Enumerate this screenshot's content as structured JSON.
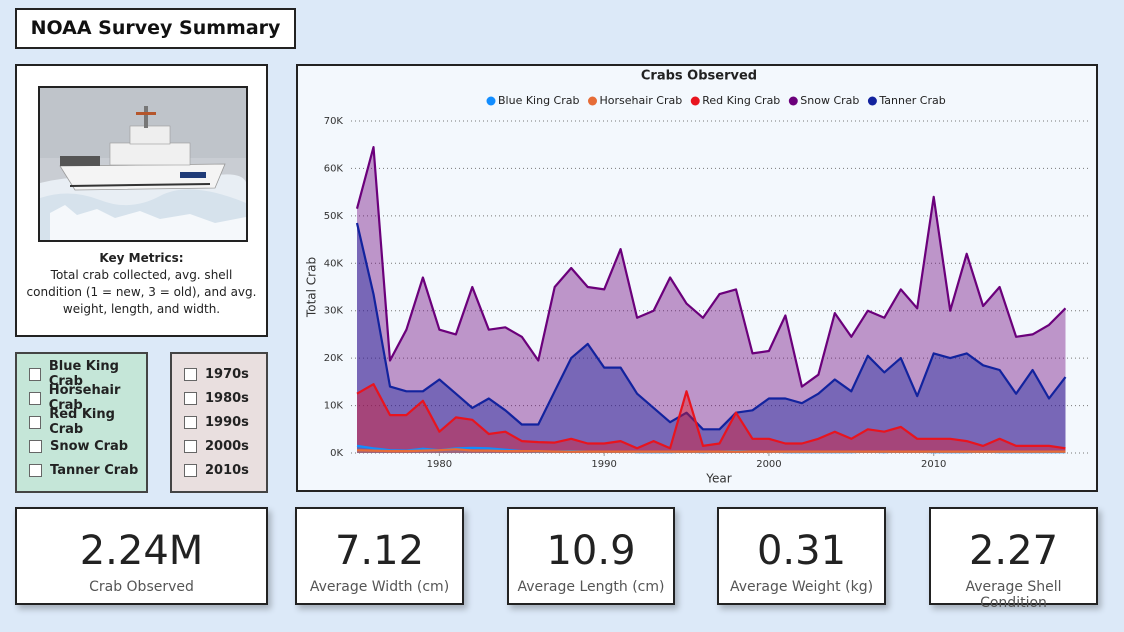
{
  "header": {
    "title": "NOAA Survey Summary"
  },
  "key_metrics": {
    "heading": "Key Metrics:",
    "text": "Total crab collected, avg. shell condition (1 = new, 3 = old), and avg. weight, length, and width."
  },
  "filters": {
    "species": [
      "Blue King Crab",
      "Horsehair Crab",
      "Red King Crab",
      "Snow Crab",
      "Tanner Crab"
    ],
    "decades": [
      "1970s",
      "1980s",
      "1990s",
      "2000s",
      "2010s"
    ]
  },
  "chart_data": {
    "type": "area",
    "title": "Crabs Observed",
    "x_label": "Year",
    "y_label": "Total Crab",
    "x": [
      1975,
      1976,
      1977,
      1978,
      1979,
      1980,
      1981,
      1982,
      1983,
      1984,
      1985,
      1986,
      1987,
      1988,
      1989,
      1990,
      1991,
      1992,
      1993,
      1994,
      1995,
      1996,
      1997,
      1998,
      1999,
      2000,
      2001,
      2002,
      2003,
      2004,
      2005,
      2006,
      2007,
      2008,
      2009,
      2010,
      2011,
      2012,
      2013,
      2014,
      2015,
      2016,
      2017,
      2018
    ],
    "xlim": [
      1975,
      2019
    ],
    "xticks": [
      1980,
      1990,
      2000,
      2010
    ],
    "ylim": [
      0,
      70000
    ],
    "yticks": [
      {
        "value": 0,
        "label": "0K"
      },
      {
        "value": 10000,
        "label": "10K"
      },
      {
        "value": 20000,
        "label": "20K"
      },
      {
        "value": 30000,
        "label": "30K"
      },
      {
        "value": 40000,
        "label": "40K"
      },
      {
        "value": 50000,
        "label": "50K"
      },
      {
        "value": 60000,
        "label": "60K"
      },
      {
        "value": 70000,
        "label": "70K"
      }
    ],
    "grid": true,
    "legend": "top",
    "series": [
      {
        "name": "Blue King Crab",
        "color": "#118dff",
        "values": [
          1500,
          1000,
          600,
          500,
          900,
          600,
          1000,
          1100,
          1000,
          700,
          400,
          300,
          300,
          400,
          300,
          300,
          300,
          200,
          200,
          200,
          300,
          200,
          300,
          400,
          300,
          300,
          200,
          200,
          200,
          200,
          200,
          300,
          200,
          300,
          300,
          200,
          200,
          200,
          300,
          200,
          200,
          200,
          200,
          200
        ]
      },
      {
        "name": "Horsehair Crab",
        "color": "#e66c37",
        "values": [
          600,
          500,
          400,
          400,
          500,
          600,
          800,
          500,
          500,
          400,
          400,
          400,
          300,
          300,
          300,
          300,
          300,
          300,
          300,
          300,
          300,
          300,
          300,
          300,
          300,
          300,
          300,
          300,
          300,
          300,
          300,
          300,
          300,
          300,
          300,
          300,
          300,
          300,
          300,
          300,
          300,
          300,
          300,
          300
        ]
      },
      {
        "name": "Red King Crab",
        "color": "#e8141e",
        "values": [
          12500,
          14500,
          8000,
          8000,
          11000,
          4500,
          7500,
          7000,
          4000,
          4500,
          2500,
          2300,
          2200,
          3000,
          2000,
          2000,
          2500,
          1000,
          2500,
          1000,
          13000,
          1500,
          2000,
          8500,
          3000,
          3000,
          2000,
          2000,
          3000,
          4500,
          3000,
          5000,
          4500,
          5500,
          3000,
          3000,
          3000,
          2500,
          1500,
          3000,
          1500,
          1500,
          1500,
          1000
        ]
      },
      {
        "name": "Snow Crab",
        "color": "#6b007b",
        "values": [
          51500,
          64500,
          19500,
          26000,
          37000,
          26000,
          25000,
          35000,
          26000,
          26500,
          24500,
          19500,
          35000,
          39000,
          35000,
          34500,
          43000,
          28500,
          30000,
          37000,
          31500,
          28500,
          33500,
          34500,
          21000,
          21500,
          29000,
          14000,
          16500,
          29500,
          24500,
          30000,
          28500,
          34500,
          30500,
          54000,
          30000,
          42000,
          31000,
          35000,
          24500,
          25000,
          27000,
          30500
        ]
      },
      {
        "name": "Tanner Crab",
        "color": "#12239e",
        "values": [
          48500,
          33500,
          14000,
          13000,
          13000,
          15500,
          12500,
          9500,
          11500,
          9000,
          6000,
          6000,
          13000,
          20000,
          23000,
          18000,
          18000,
          12500,
          9500,
          6500,
          8500,
          5000,
          5000,
          8500,
          9000,
          11500,
          11500,
          10500,
          12500,
          15500,
          13000,
          20500,
          17000,
          20000,
          12000,
          21000,
          20000,
          21000,
          18500,
          17500,
          12500,
          17500,
          11500,
          16000
        ]
      }
    ]
  },
  "kpis": [
    {
      "value": "2.24M",
      "label": "Crab Observed"
    },
    {
      "value": "7.12",
      "label": "Average Width (cm)"
    },
    {
      "value": "10.9",
      "label": "Average Length (cm)"
    },
    {
      "value": "0.31",
      "label": "Average Weight (kg)"
    },
    {
      "value": "2.27",
      "label": "Average Shell Condition"
    }
  ]
}
